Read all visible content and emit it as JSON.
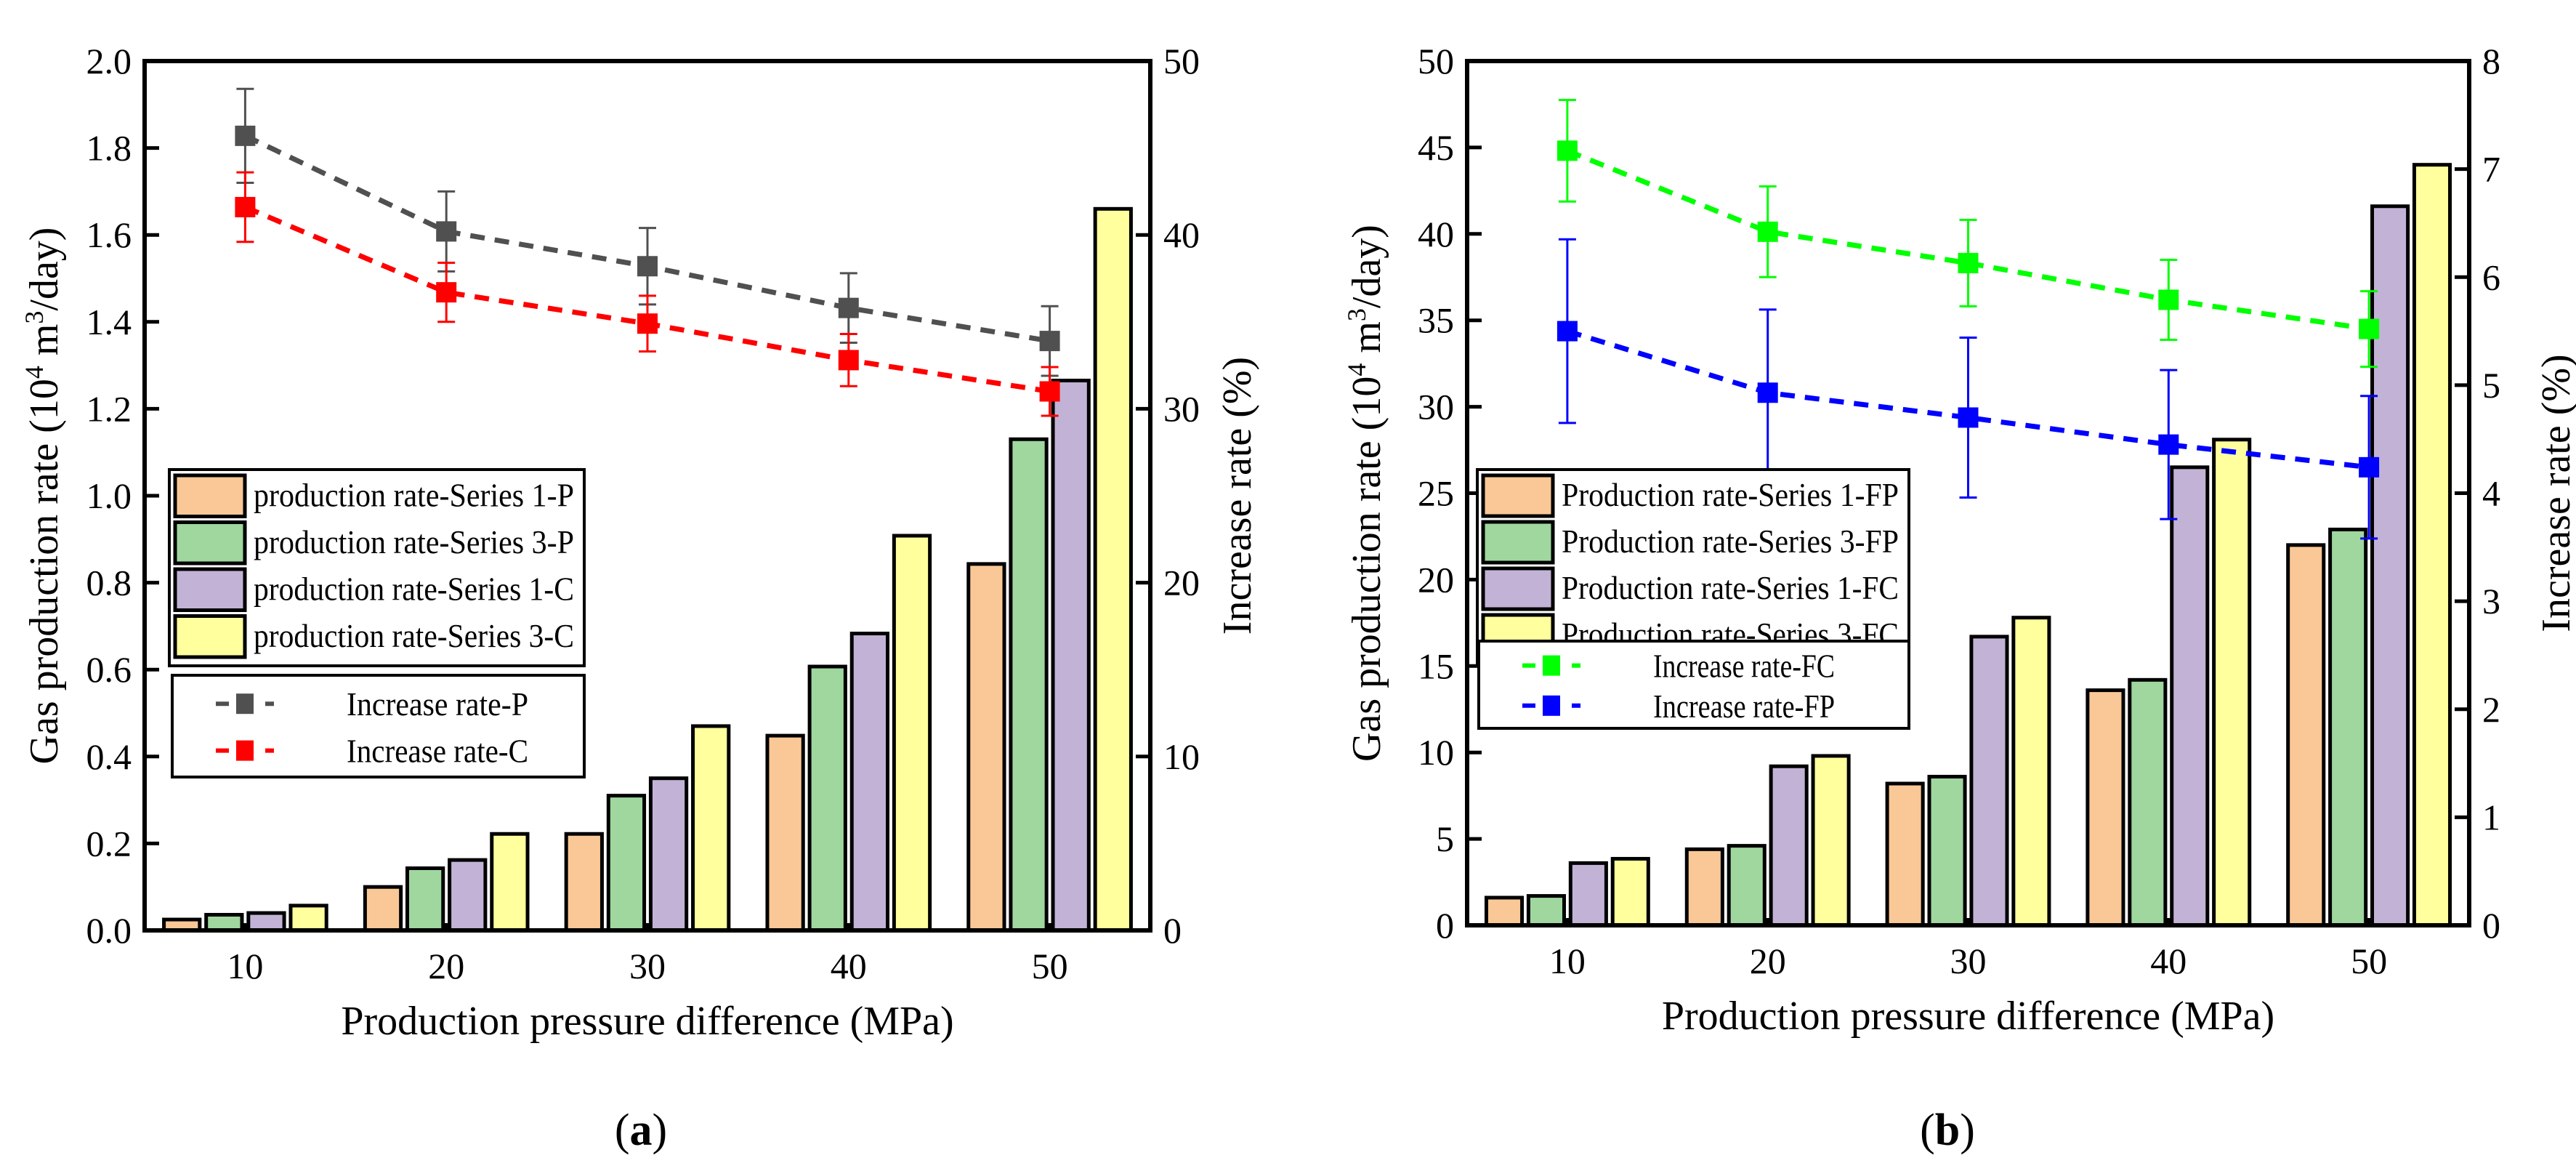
{
  "chart_data": [
    {
      "id": "a",
      "type": "bar",
      "panel_label": "(a)",
      "panel_letter": "a",
      "xlabel": "Production pressure difference (MPa)",
      "ylabel": "Gas production rate (10^4 m^3/day)",
      "ylabel_parts": [
        "Gas production rate (10",
        "4",
        " m",
        "3",
        "/day)"
      ],
      "y2label": "Increase rate (%)",
      "x": [
        10,
        20,
        30,
        40,
        50
      ],
      "xlim": [
        5,
        55
      ],
      "ylim": [
        0,
        2.0
      ],
      "yticks": [
        "0.0",
        "0.2",
        "0.4",
        "0.6",
        "0.8",
        "1.0",
        "1.2",
        "1.4",
        "1.6",
        "1.8",
        "2.0"
      ],
      "y2lim": [
        0,
        50
      ],
      "y2ticks": [
        "0",
        "10",
        "20",
        "30",
        "40",
        "50"
      ],
      "series": [
        {
          "name": "production rate-Series 1-P",
          "axis": "left",
          "kind": "bar",
          "color": "#F9C896",
          "values": [
            0.025,
            0.1,
            0.222,
            0.448,
            0.843
          ]
        },
        {
          "name": "production rate-Series 3-P",
          "axis": "left",
          "kind": "bar",
          "color": "#9FD79F",
          "values": [
            0.036,
            0.143,
            0.31,
            0.607,
            1.13
          ]
        },
        {
          "name": "production rate-Series 1-C",
          "axis": "left",
          "kind": "bar",
          "color": "#C2B3D6",
          "values": [
            0.04,
            0.162,
            0.35,
            0.683,
            1.265
          ]
        },
        {
          "name": "production rate-Series 3-C",
          "axis": "left",
          "kind": "bar",
          "color": "#FFFF9E",
          "values": [
            0.057,
            0.222,
            0.47,
            0.908,
            1.66
          ]
        },
        {
          "name": "Increase rate-P",
          "axis": "right",
          "kind": "line",
          "color": "#505050",
          "values": [
            45.7,
            40.2,
            38.2,
            35.8,
            33.9
          ],
          "errors": [
            2.7,
            2.3,
            2.2,
            2.0,
            2.0
          ]
        },
        {
          "name": "Increase rate-C",
          "axis": "right",
          "kind": "line",
          "color": "#FF0000",
          "values": [
            41.6,
            36.7,
            34.9,
            32.8,
            31.0
          ],
          "errors": [
            2.0,
            1.7,
            1.6,
            1.5,
            1.4
          ]
        }
      ],
      "legend_placement": "center-left"
    },
    {
      "id": "b",
      "type": "bar",
      "panel_label": "(b)",
      "panel_letter": "b",
      "xlabel": "Production pressure difference (MPa)",
      "ylabel": "Gas production rate (10^4 m^3/day)",
      "ylabel_parts": [
        "Gas production rate (10",
        "4",
        " m",
        "3",
        "/day)"
      ],
      "y2label": "Increase rate (%)",
      "x": [
        10,
        20,
        30,
        40,
        50
      ],
      "xlim": [
        5,
        55
      ],
      "ylim": [
        0,
        50
      ],
      "yticks": [
        "0",
        "5",
        "10",
        "15",
        "20",
        "25",
        "30",
        "35",
        "40",
        "45",
        "50"
      ],
      "y2lim": [
        0,
        8
      ],
      "y2ticks": [
        "0",
        "1",
        "2",
        "3",
        "4",
        "5",
        "6",
        "7",
        "8"
      ],
      "series": [
        {
          "name": "Production rate-Series 1-FP",
          "axis": "left",
          "kind": "bar",
          "color": "#F9C896",
          "values": [
            1.6,
            4.4,
            8.2,
            13.6,
            22.0
          ]
        },
        {
          "name": "Production rate-Series 3-FP",
          "axis": "left",
          "kind": "bar",
          "color": "#9FD79F",
          "values": [
            1.7,
            4.6,
            8.6,
            14.2,
            22.9
          ]
        },
        {
          "name": "Production rate-Series 1-FC",
          "axis": "left",
          "kind": "bar",
          "color": "#C2B3D6",
          "values": [
            3.6,
            9.2,
            16.7,
            26.5,
            41.6
          ]
        },
        {
          "name": "Production rate-Series 3-FC",
          "axis": "left",
          "kind": "bar",
          "color": "#FFFF9E",
          "values": [
            3.85,
            9.8,
            17.8,
            28.1,
            44.0
          ]
        },
        {
          "name": "Increase rate-FC",
          "axis": "right",
          "kind": "line",
          "color": "#00FF00",
          "values": [
            7.17,
            6.42,
            6.13,
            5.79,
            5.52
          ],
          "errors": [
            0.47,
            0.42,
            0.4,
            0.37,
            0.35
          ]
        },
        {
          "name": "Increase rate-FP",
          "axis": "right",
          "kind": "line",
          "color": "#0000FF",
          "values": [
            5.5,
            4.93,
            4.7,
            4.45,
            4.24
          ],
          "errors": [
            0.85,
            0.77,
            0.74,
            0.69,
            0.66
          ]
        }
      ],
      "legend_placement": "center-left"
    }
  ]
}
